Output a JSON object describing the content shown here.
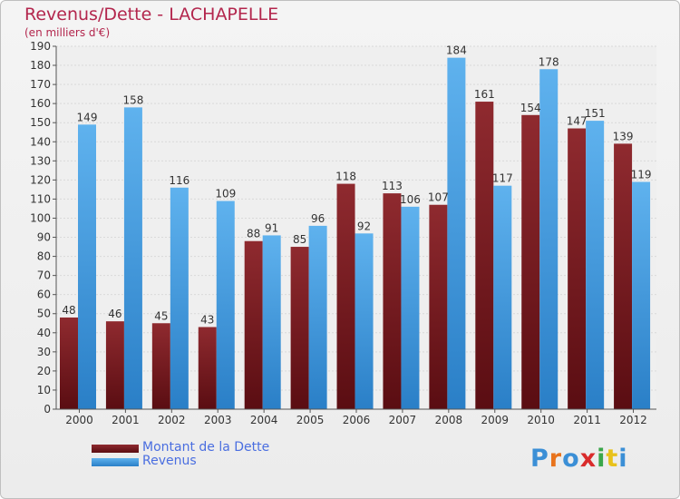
{
  "chart_data": {
    "type": "bar",
    "title": "Revenus/Dette - LACHAPELLE",
    "subtitle": "(en milliers d'€)",
    "categories": [
      "2000",
      "2001",
      "2002",
      "2003",
      "2004",
      "2005",
      "2006",
      "2007",
      "2008",
      "2009",
      "2010",
      "2011",
      "2012"
    ],
    "series": [
      {
        "name": "Montant de la Dette",
        "color": "#7a1f24",
        "values": [
          48,
          46,
          45,
          43,
          88,
          85,
          118,
          113,
          107,
          161,
          154,
          147,
          139
        ]
      },
      {
        "name": "Revenus",
        "color": "#3d9be0",
        "values": [
          149,
          158,
          116,
          109,
          91,
          96,
          92,
          106,
          184,
          117,
          178,
          151,
          119
        ]
      }
    ],
    "ylim": [
      0,
      190
    ],
    "ytick_step": 10,
    "grid": true,
    "legend_position": "bottom-left"
  },
  "logo": {
    "text": "Proxiti",
    "colors": [
      "#3b8fd6",
      "#e8731c",
      "#3b8fd6",
      "#d92b2b",
      "#3aa64a",
      "#e8c21c",
      "#3b8fd6"
    ]
  }
}
